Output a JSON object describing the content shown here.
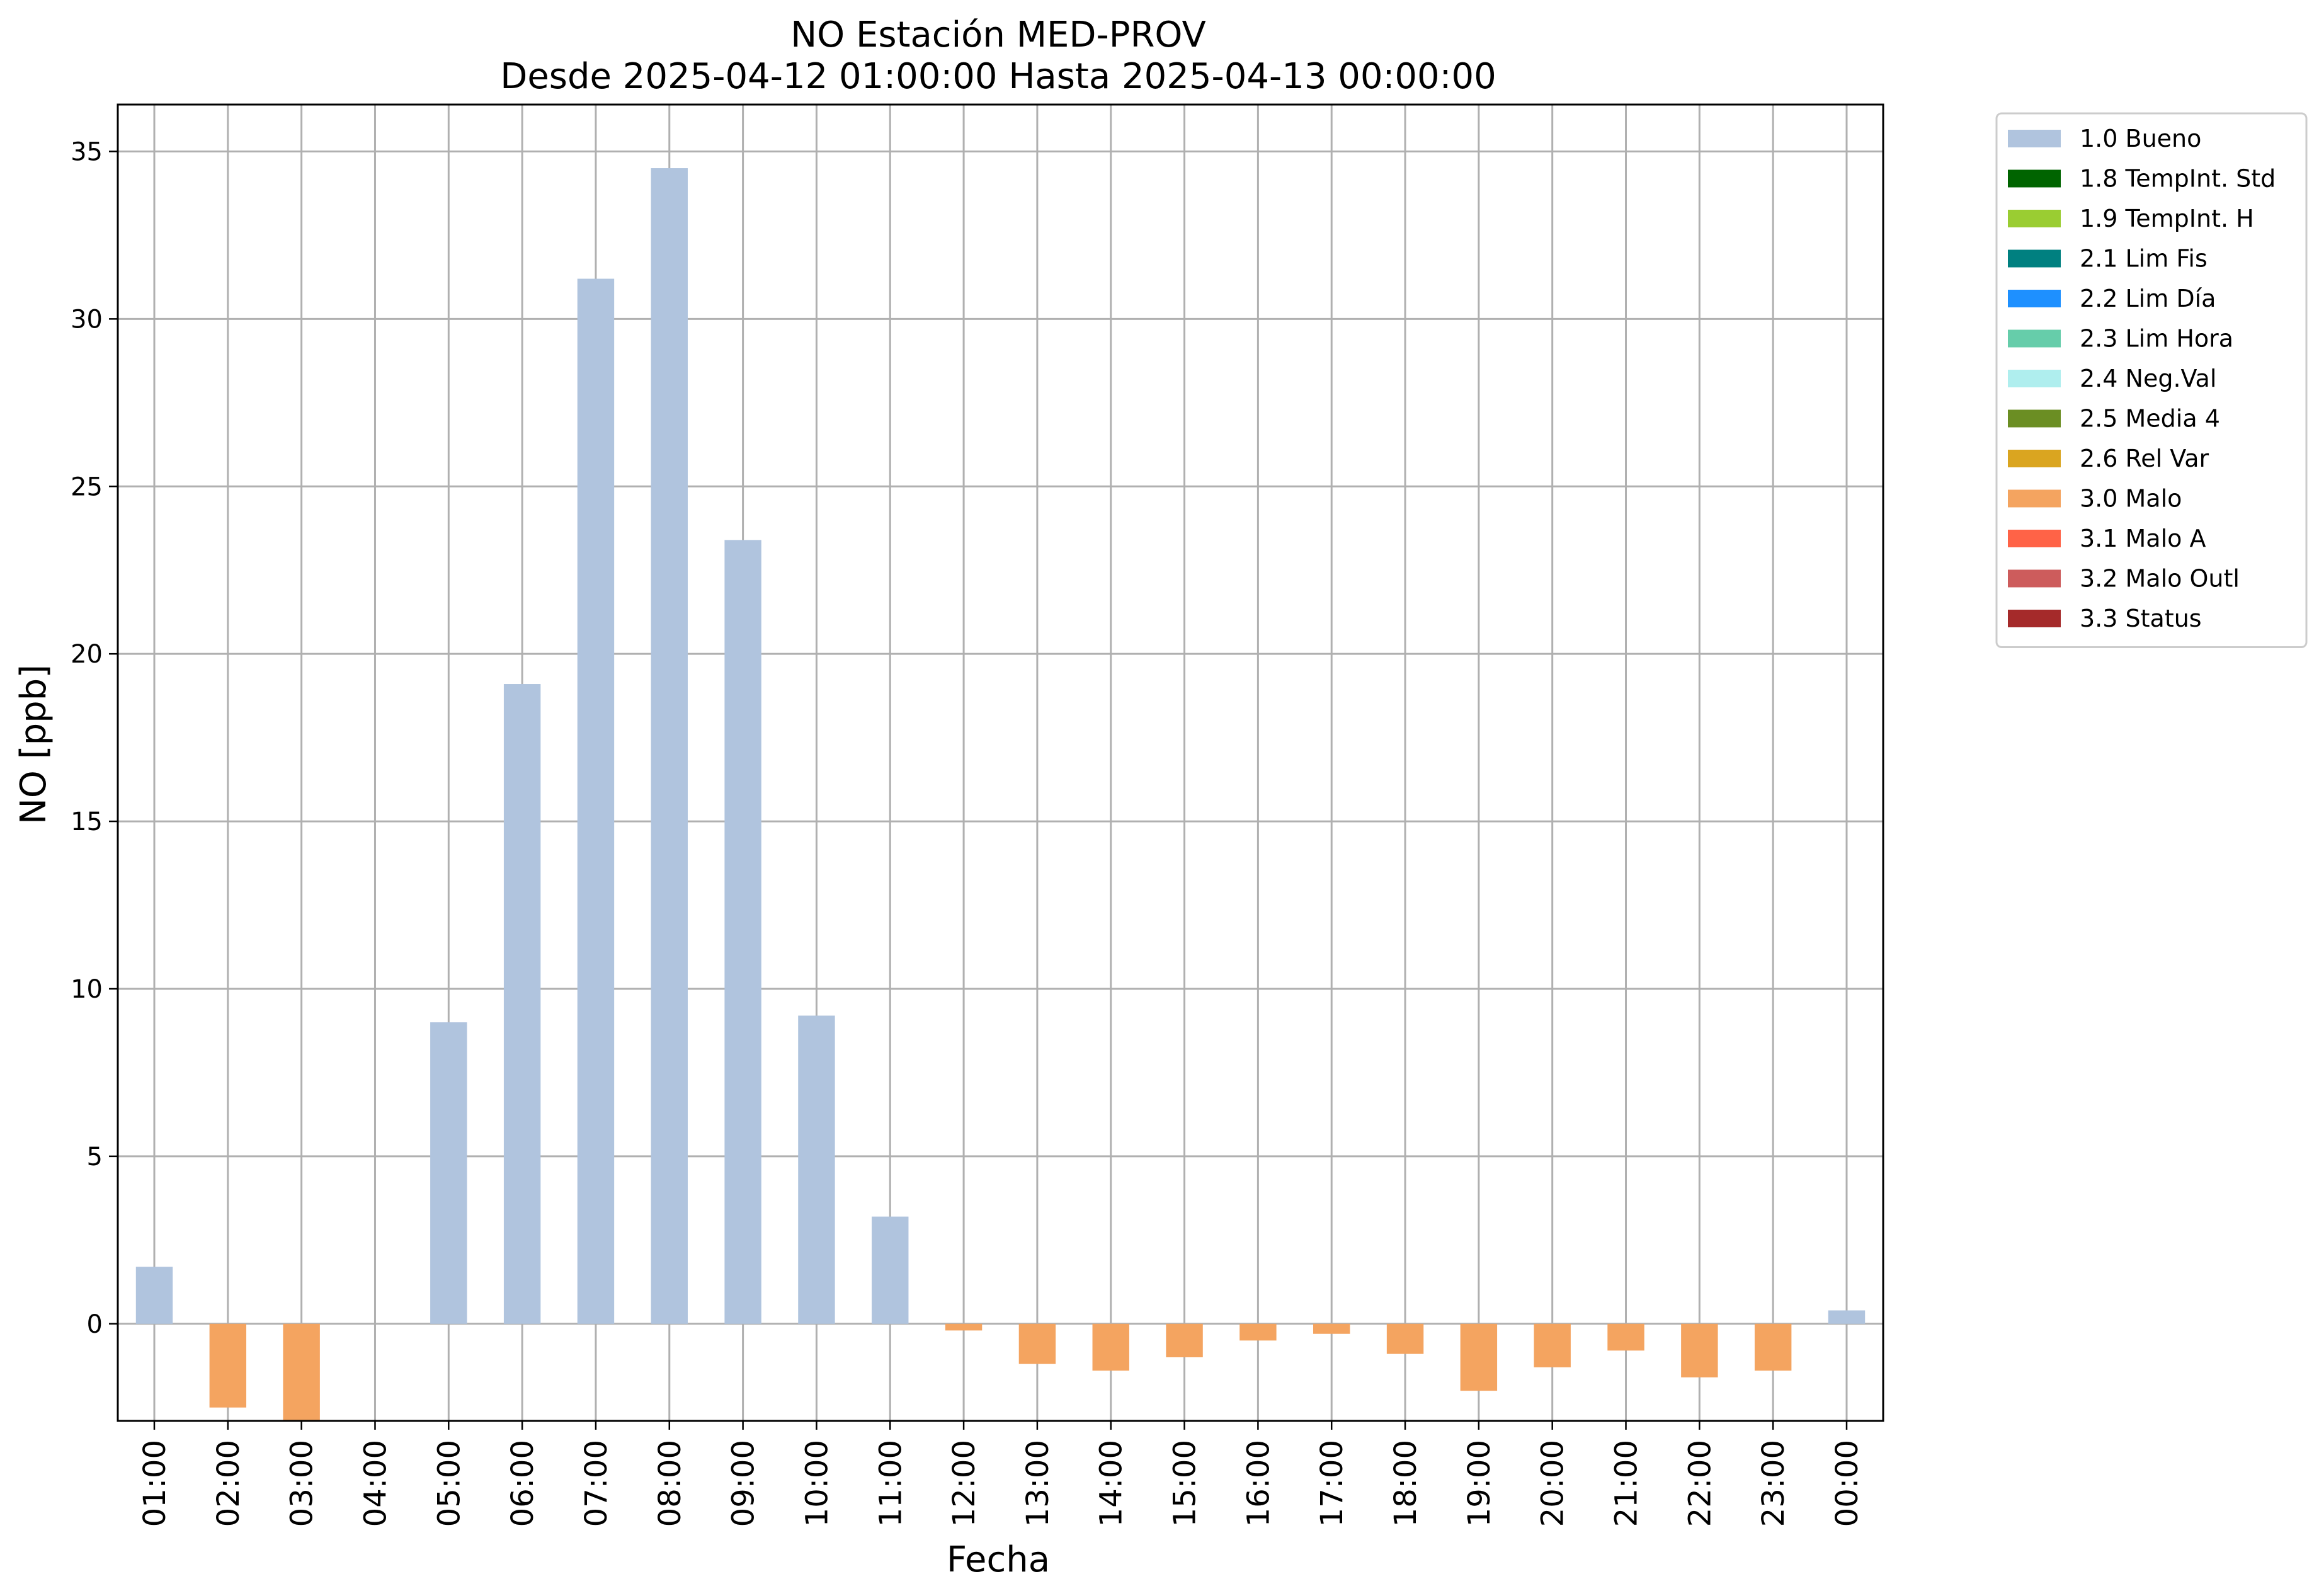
{
  "chart_data": {
    "type": "bar",
    "title": "NO Estación MED-PROV",
    "subtitle": "Desde 2025-04-12 01:00:00 Hasta 2025-04-13 00:00:00",
    "xlabel": "Fecha",
    "ylabel": "NO [ppb]",
    "ylim": [
      -2.9,
      36.4
    ],
    "yticks": [
      0,
      5,
      10,
      15,
      20,
      25,
      30,
      35
    ],
    "grid": true,
    "legend_position": "outside top-right",
    "categories": [
      "01:00",
      "02:00",
      "03:00",
      "04:00",
      "05:00",
      "06:00",
      "07:00",
      "08:00",
      "09:00",
      "10:00",
      "11:00",
      "12:00",
      "13:00",
      "14:00",
      "15:00",
      "16:00",
      "17:00",
      "18:00",
      "19:00",
      "20:00",
      "21:00",
      "22:00",
      "23:00",
      "00:00"
    ],
    "values": [
      1.7,
      -2.5,
      -3.0,
      null,
      9.0,
      19.1,
      31.2,
      34.5,
      23.4,
      9.2,
      3.2,
      -0.2,
      -1.2,
      -1.4,
      -1.0,
      -0.5,
      -0.3,
      -0.9,
      -2.0,
      -1.3,
      -0.8,
      -1.6,
      -1.4,
      0.4
    ],
    "flags": [
      "1.0",
      "3.0",
      "3.0",
      null,
      "1.0",
      "1.0",
      "1.0",
      "1.0",
      "1.0",
      "1.0",
      "1.0",
      "3.0",
      "3.0",
      "3.0",
      "3.0",
      "3.0",
      "3.0",
      "3.0",
      "3.0",
      "3.0",
      "3.0",
      "3.0",
      "3.0",
      "1.0"
    ],
    "legend": [
      {
        "code": "1.0",
        "label": "1.0 Bueno",
        "color": "#b0c4de"
      },
      {
        "code": "1.8",
        "label": "1.8 TempInt. Std",
        "color": "#006400"
      },
      {
        "code": "1.9",
        "label": "1.9 TempInt. H",
        "color": "#9acd32"
      },
      {
        "code": "2.1",
        "label": "2.1 Lim Fis",
        "color": "#008080"
      },
      {
        "code": "2.2",
        "label": "2.2 Lim Día",
        "color": "#1e90ff"
      },
      {
        "code": "2.3",
        "label": "2.3 Lim Hora",
        "color": "#66cdaa"
      },
      {
        "code": "2.4",
        "label": "2.4 Neg.Val",
        "color": "#afeeee"
      },
      {
        "code": "2.5",
        "label": "2.5 Media 4",
        "color": "#6b8e23"
      },
      {
        "code": "2.6",
        "label": "2.6 Rel Var",
        "color": "#daa520"
      },
      {
        "code": "3.0",
        "label": "3.0 Malo",
        "color": "#f4a460"
      },
      {
        "code": "3.1",
        "label": "3.1 Malo A",
        "color": "#ff6347"
      },
      {
        "code": "3.2",
        "label": "3.2 Malo Outl",
        "color": "#cd5c5c"
      },
      {
        "code": "3.3",
        "label": "3.3 Status",
        "color": "#a52a2a"
      }
    ]
  }
}
